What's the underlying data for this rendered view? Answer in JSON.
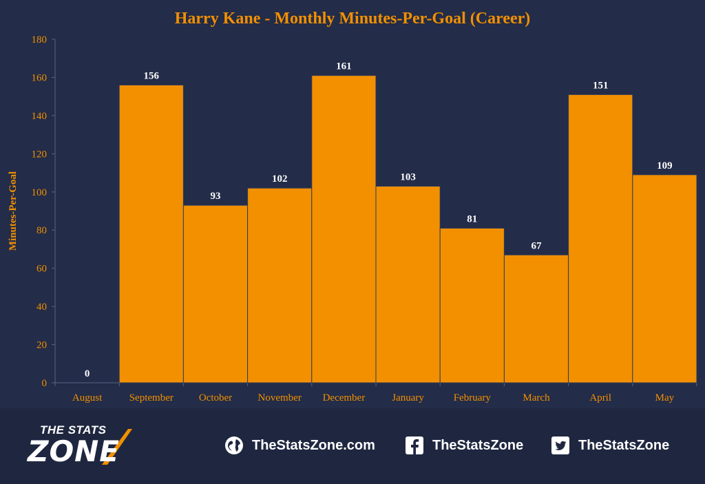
{
  "colors": {
    "background": "#232c48",
    "plot_background": "#232c48",
    "bar": "#f29000",
    "bar_stroke": "#2f3a5a",
    "title": "#f29000",
    "axis_text": "#f29000",
    "data_label": "#ffffff",
    "axis_line": "#5a6686"
  },
  "chart_data": {
    "type": "bar",
    "title": "Harry Kane - Monthly Minutes-Per-Goal (Career)",
    "xlabel": "",
    "ylabel": "Minutes-Per-Goal",
    "categories": [
      "August",
      "September",
      "October",
      "November",
      "December",
      "January",
      "February",
      "March",
      "April",
      "May"
    ],
    "values": [
      0,
      156,
      93,
      102,
      161,
      103,
      81,
      67,
      151,
      109
    ],
    "ylim": [
      0,
      180
    ],
    "yticks": [
      0,
      20,
      40,
      60,
      80,
      100,
      120,
      140,
      160,
      180
    ],
    "grid": false,
    "data_labels": true
  },
  "footer": {
    "logo_top": "THE STATS",
    "logo_bottom": "ZONE",
    "website": "TheStatsZone.com",
    "facebook": "TheStatsZone",
    "twitter": "TheStatsZone",
    "website_icon": "globe-icon",
    "facebook_icon": "facebook-icon",
    "twitter_icon": "twitter-icon"
  }
}
